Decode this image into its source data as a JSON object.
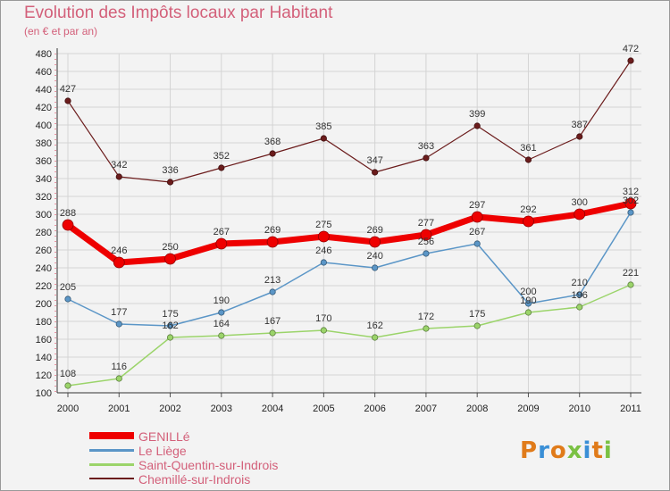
{
  "header": {
    "title": "Evolution des Impôts locaux par Habitant",
    "subtitle": "(en € et par an)"
  },
  "logo": {
    "text": "Proxiti",
    "colors": [
      "#e07b1a",
      "#3a8fd6",
      "#e07b1a",
      "#7ac143",
      "#3a8fd6",
      "#e07b1a",
      "#7ac143"
    ]
  },
  "chart_data": {
    "type": "line",
    "categories": [
      "2000",
      "2001",
      "2002",
      "2003",
      "2004",
      "2005",
      "2006",
      "2007",
      "2008",
      "2009",
      "2010",
      "2011"
    ],
    "ylim": [
      100,
      480
    ],
    "yticks": [
      100,
      120,
      140,
      160,
      180,
      200,
      220,
      240,
      260,
      280,
      300,
      320,
      340,
      360,
      380,
      400,
      420,
      440,
      460,
      480
    ],
    "grid": true,
    "legend_position": "bottom-left",
    "series": [
      {
        "name": "Chemillé-sur-Indrois",
        "color": "#6b1c1c",
        "values": [
          427,
          342,
          336,
          352,
          368,
          385,
          347,
          363,
          399,
          361,
          387,
          472
        ]
      },
      {
        "name": "Le Liège",
        "color": "#5b96c7",
        "values": [
          205,
          177,
          175,
          190,
          213,
          246,
          240,
          256,
          267,
          200,
          210,
          302
        ]
      },
      {
        "name": "Saint-Quentin-sur-Indrois",
        "color": "#9bd46a",
        "values": [
          108,
          116,
          162,
          164,
          167,
          170,
          162,
          172,
          175,
          190,
          196,
          221
        ]
      },
      {
        "name": "GENILLé",
        "color": "#ee0000",
        "values": [
          288,
          246,
          250,
          267,
          269,
          275,
          269,
          277,
          297,
          292,
          300,
          312
        ]
      }
    ],
    "legend": [
      "GENILLé",
      "Le Liège",
      "Saint-Quentin-sur-Indrois",
      "Chemillé-sur-Indrois"
    ]
  }
}
